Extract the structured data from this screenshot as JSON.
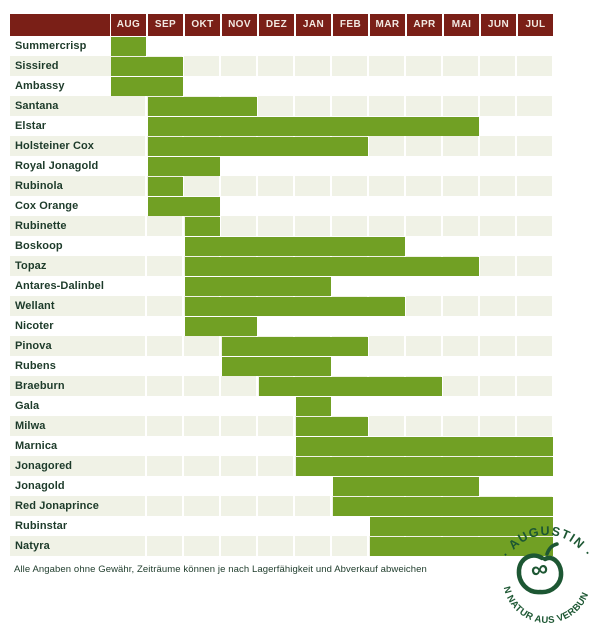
{
  "chart_data": {
    "type": "bar",
    "subtype": "gantt-availability",
    "title": "",
    "xlabel": "",
    "ylabel": "",
    "legend": "none",
    "months": [
      "AUG",
      "SEP",
      "OKT",
      "NOV",
      "DEZ",
      "JAN",
      "FEB",
      "MAR",
      "APR",
      "MAI",
      "JUN",
      "JUL"
    ],
    "rows": [
      {
        "label": "Summercrisp",
        "start_month": "AUG",
        "end_month": "AUG",
        "start": 0,
        "end": 0
      },
      {
        "label": "Sissired",
        "start_month": "AUG",
        "end_month": "SEP",
        "start": 0,
        "end": 1
      },
      {
        "label": "Ambassy",
        "start_month": "AUG",
        "end_month": "SEP",
        "start": 0,
        "end": 1
      },
      {
        "label": "Santana",
        "start_month": "SEP",
        "end_month": "NOV",
        "start": 1,
        "end": 3
      },
      {
        "label": "Elstar",
        "start_month": "SEP",
        "end_month": "MAI",
        "start": 1,
        "end": 9
      },
      {
        "label": "Holsteiner Cox",
        "start_month": "SEP",
        "end_month": "FEB",
        "start": 1,
        "end": 6
      },
      {
        "label": "Royal Jonagold",
        "start_month": "SEP",
        "end_month": "OKT",
        "start": 1,
        "end": 2
      },
      {
        "label": "Rubinola",
        "start_month": "SEP",
        "end_month": "SEP",
        "start": 1,
        "end": 1
      },
      {
        "label": "Cox Orange",
        "start_month": "SEP",
        "end_month": "OKT",
        "start": 1,
        "end": 2
      },
      {
        "label": "Rubinette",
        "start_month": "OKT",
        "end_month": "OKT",
        "start": 2,
        "end": 2
      },
      {
        "label": "Boskoop",
        "start_month": "OKT",
        "end_month": "MAR",
        "start": 2,
        "end": 7
      },
      {
        "label": "Topaz",
        "start_month": "OKT",
        "end_month": "MAI",
        "start": 2,
        "end": 9
      },
      {
        "label": "Antares-Dalinbel",
        "start_month": "OKT",
        "end_month": "JAN",
        "start": 2,
        "end": 5
      },
      {
        "label": "Wellant",
        "start_month": "OKT",
        "end_month": "MAR",
        "start": 2,
        "end": 7
      },
      {
        "label": "Nicoter",
        "start_month": "OKT",
        "end_month": "NOV",
        "start": 2,
        "end": 3
      },
      {
        "label": "Pinova",
        "start_month": "NOV",
        "end_month": "FEB",
        "start": 3,
        "end": 6
      },
      {
        "label": "Rubens",
        "start_month": "NOV",
        "end_month": "JAN",
        "start": 3,
        "end": 5
      },
      {
        "label": "Braeburn",
        "start_month": "DEZ",
        "end_month": "APR",
        "start": 4,
        "end": 8
      },
      {
        "label": "Gala",
        "start_month": "JAN",
        "end_month": "JAN",
        "start": 5,
        "end": 5
      },
      {
        "label": "Milwa",
        "start_month": "JAN",
        "end_month": "FEB",
        "start": 5,
        "end": 6
      },
      {
        "label": "Marnica",
        "start_month": "JAN",
        "end_month": "JUL",
        "start": 5,
        "end": 11
      },
      {
        "label": "Jonagored",
        "start_month": "JAN",
        "end_month": "JUL",
        "start": 5,
        "end": 11
      },
      {
        "label": "Jonagold",
        "start_month": "FEB",
        "end_month": "MAI",
        "start": 6,
        "end": 9
      },
      {
        "label": "Red Jonaprince",
        "start_month": "FEB",
        "end_month": "JUL",
        "start": 6,
        "end": 11
      },
      {
        "label": "Rubinstar",
        "start_month": "MAR",
        "end_month": "JUL",
        "start": 7,
        "end": 11
      },
      {
        "label": "Natyra",
        "start_month": "MAR",
        "end_month": "JUL",
        "start": 7,
        "end": 11
      }
    ]
  },
  "footer": {
    "disclaimer": "Alle Angaben ohne Gewähr, Zeiträume können je nach Lagerfähigkeit und Abverkauf abweichen"
  },
  "logo": {
    "top_text": "· AUGUSTIN ·",
    "bottom_text": "VON NATUR AUS VERBUNDEN",
    "glyph": "apple-infinity-icon"
  },
  "colors": {
    "header_bg": "#7a1f17",
    "bar_green": "#71a024",
    "row_alt": "#f0f2e6",
    "label_text": "#1d3b2a",
    "month_text": "#f2e9e2",
    "logo_green": "#1d5733"
  }
}
